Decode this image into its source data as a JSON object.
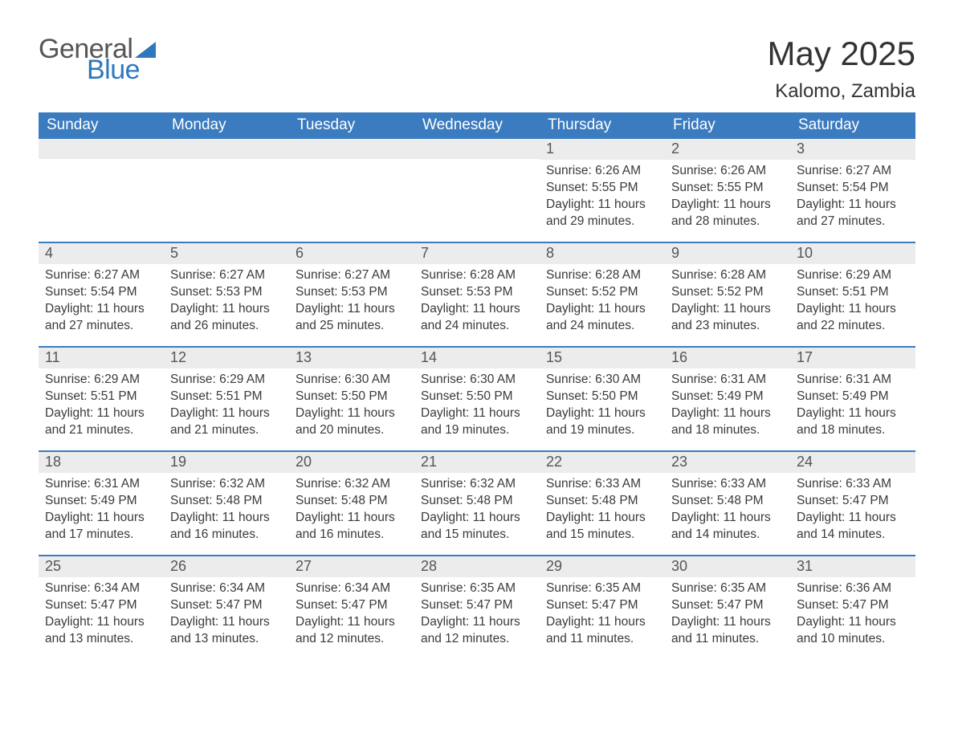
{
  "logo": {
    "text_general": "General",
    "text_blue": "Blue",
    "triangle_color": "#2f78bd"
  },
  "title": "May 2025",
  "location": "Kalomo, Zambia",
  "colors": {
    "header_bg": "#3b7bbf",
    "header_text": "#ffffff",
    "daynum_bg": "#ececec",
    "daynum_text": "#555555",
    "body_text": "#3a3a3a",
    "divider": "#3b7bbf",
    "page_bg": "#ffffff"
  },
  "typography": {
    "title_fontsize": 42,
    "location_fontsize": 24,
    "dayheader_fontsize": 19,
    "daynum_fontsize": 18,
    "body_fontsize": 15.5,
    "font_family": "Arial"
  },
  "day_labels": [
    "Sunday",
    "Monday",
    "Tuesday",
    "Wednesday",
    "Thursday",
    "Friday",
    "Saturday"
  ],
  "weeks": [
    [
      {
        "empty": true
      },
      {
        "empty": true
      },
      {
        "empty": true
      },
      {
        "empty": true
      },
      {
        "num": "1",
        "sunrise": "Sunrise: 6:26 AM",
        "sunset": "Sunset: 5:55 PM",
        "daylight": "Daylight: 11 hours and 29 minutes."
      },
      {
        "num": "2",
        "sunrise": "Sunrise: 6:26 AM",
        "sunset": "Sunset: 5:55 PM",
        "daylight": "Daylight: 11 hours and 28 minutes."
      },
      {
        "num": "3",
        "sunrise": "Sunrise: 6:27 AM",
        "sunset": "Sunset: 5:54 PM",
        "daylight": "Daylight: 11 hours and 27 minutes."
      }
    ],
    [
      {
        "num": "4",
        "sunrise": "Sunrise: 6:27 AM",
        "sunset": "Sunset: 5:54 PM",
        "daylight": "Daylight: 11 hours and 27 minutes."
      },
      {
        "num": "5",
        "sunrise": "Sunrise: 6:27 AM",
        "sunset": "Sunset: 5:53 PM",
        "daylight": "Daylight: 11 hours and 26 minutes."
      },
      {
        "num": "6",
        "sunrise": "Sunrise: 6:27 AM",
        "sunset": "Sunset: 5:53 PM",
        "daylight": "Daylight: 11 hours and 25 minutes."
      },
      {
        "num": "7",
        "sunrise": "Sunrise: 6:28 AM",
        "sunset": "Sunset: 5:53 PM",
        "daylight": "Daylight: 11 hours and 24 minutes."
      },
      {
        "num": "8",
        "sunrise": "Sunrise: 6:28 AM",
        "sunset": "Sunset: 5:52 PM",
        "daylight": "Daylight: 11 hours and 24 minutes."
      },
      {
        "num": "9",
        "sunrise": "Sunrise: 6:28 AM",
        "sunset": "Sunset: 5:52 PM",
        "daylight": "Daylight: 11 hours and 23 minutes."
      },
      {
        "num": "10",
        "sunrise": "Sunrise: 6:29 AM",
        "sunset": "Sunset: 5:51 PM",
        "daylight": "Daylight: 11 hours and 22 minutes."
      }
    ],
    [
      {
        "num": "11",
        "sunrise": "Sunrise: 6:29 AM",
        "sunset": "Sunset: 5:51 PM",
        "daylight": "Daylight: 11 hours and 21 minutes."
      },
      {
        "num": "12",
        "sunrise": "Sunrise: 6:29 AM",
        "sunset": "Sunset: 5:51 PM",
        "daylight": "Daylight: 11 hours and 21 minutes."
      },
      {
        "num": "13",
        "sunrise": "Sunrise: 6:30 AM",
        "sunset": "Sunset: 5:50 PM",
        "daylight": "Daylight: 11 hours and 20 minutes."
      },
      {
        "num": "14",
        "sunrise": "Sunrise: 6:30 AM",
        "sunset": "Sunset: 5:50 PM",
        "daylight": "Daylight: 11 hours and 19 minutes."
      },
      {
        "num": "15",
        "sunrise": "Sunrise: 6:30 AM",
        "sunset": "Sunset: 5:50 PM",
        "daylight": "Daylight: 11 hours and 19 minutes."
      },
      {
        "num": "16",
        "sunrise": "Sunrise: 6:31 AM",
        "sunset": "Sunset: 5:49 PM",
        "daylight": "Daylight: 11 hours and 18 minutes."
      },
      {
        "num": "17",
        "sunrise": "Sunrise: 6:31 AM",
        "sunset": "Sunset: 5:49 PM",
        "daylight": "Daylight: 11 hours and 18 minutes."
      }
    ],
    [
      {
        "num": "18",
        "sunrise": "Sunrise: 6:31 AM",
        "sunset": "Sunset: 5:49 PM",
        "daylight": "Daylight: 11 hours and 17 minutes."
      },
      {
        "num": "19",
        "sunrise": "Sunrise: 6:32 AM",
        "sunset": "Sunset: 5:48 PM",
        "daylight": "Daylight: 11 hours and 16 minutes."
      },
      {
        "num": "20",
        "sunrise": "Sunrise: 6:32 AM",
        "sunset": "Sunset: 5:48 PM",
        "daylight": "Daylight: 11 hours and 16 minutes."
      },
      {
        "num": "21",
        "sunrise": "Sunrise: 6:32 AM",
        "sunset": "Sunset: 5:48 PM",
        "daylight": "Daylight: 11 hours and 15 minutes."
      },
      {
        "num": "22",
        "sunrise": "Sunrise: 6:33 AM",
        "sunset": "Sunset: 5:48 PM",
        "daylight": "Daylight: 11 hours and 15 minutes."
      },
      {
        "num": "23",
        "sunrise": "Sunrise: 6:33 AM",
        "sunset": "Sunset: 5:48 PM",
        "daylight": "Daylight: 11 hours and 14 minutes."
      },
      {
        "num": "24",
        "sunrise": "Sunrise: 6:33 AM",
        "sunset": "Sunset: 5:47 PM",
        "daylight": "Daylight: 11 hours and 14 minutes."
      }
    ],
    [
      {
        "num": "25",
        "sunrise": "Sunrise: 6:34 AM",
        "sunset": "Sunset: 5:47 PM",
        "daylight": "Daylight: 11 hours and 13 minutes."
      },
      {
        "num": "26",
        "sunrise": "Sunrise: 6:34 AM",
        "sunset": "Sunset: 5:47 PM",
        "daylight": "Daylight: 11 hours and 13 minutes."
      },
      {
        "num": "27",
        "sunrise": "Sunrise: 6:34 AM",
        "sunset": "Sunset: 5:47 PM",
        "daylight": "Daylight: 11 hours and 12 minutes."
      },
      {
        "num": "28",
        "sunrise": "Sunrise: 6:35 AM",
        "sunset": "Sunset: 5:47 PM",
        "daylight": "Daylight: 11 hours and 12 minutes."
      },
      {
        "num": "29",
        "sunrise": "Sunrise: 6:35 AM",
        "sunset": "Sunset: 5:47 PM",
        "daylight": "Daylight: 11 hours and 11 minutes."
      },
      {
        "num": "30",
        "sunrise": "Sunrise: 6:35 AM",
        "sunset": "Sunset: 5:47 PM",
        "daylight": "Daylight: 11 hours and 11 minutes."
      },
      {
        "num": "31",
        "sunrise": "Sunrise: 6:36 AM",
        "sunset": "Sunset: 5:47 PM",
        "daylight": "Daylight: 11 hours and 10 minutes."
      }
    ]
  ]
}
